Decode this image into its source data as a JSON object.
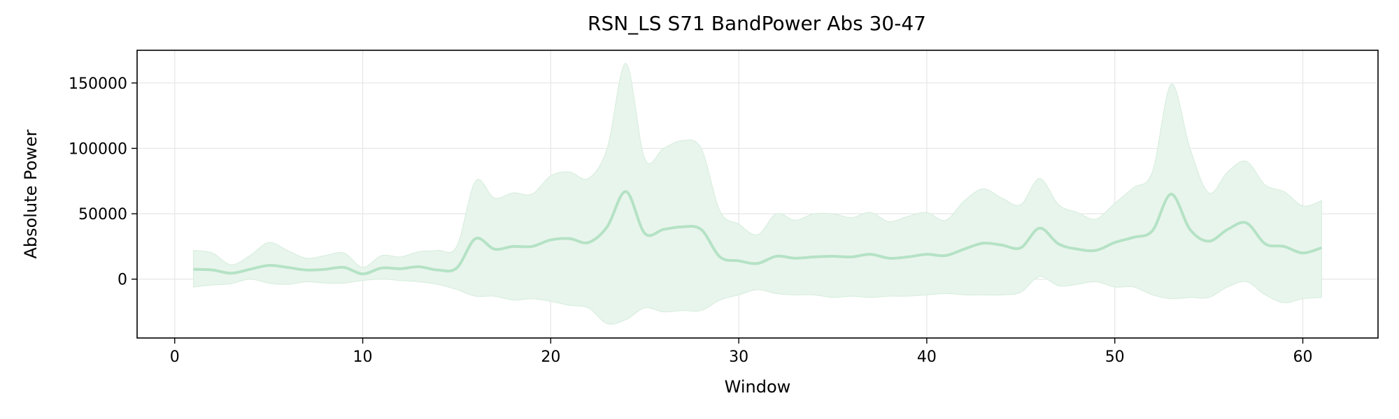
{
  "chart_data": {
    "type": "line",
    "title": "RSN_LS S71 BandPower Abs 30-47",
    "xlabel": "Window",
    "ylabel": "Absolute Power",
    "xlim": [
      -2,
      64
    ],
    "ylim": [
      -45000,
      175000
    ],
    "xticks": [
      0,
      10,
      20,
      30,
      40,
      50,
      60
    ],
    "yticks": [
      0,
      50000,
      100000,
      150000
    ],
    "grid": true,
    "colors": {
      "line": "#b5e2c5",
      "band": "#e8f5ec",
      "band_edge": "#d5ecdc",
      "grid": "#e6e6e6"
    },
    "series": [
      {
        "x": [
          1,
          2,
          3,
          4,
          5,
          6,
          7,
          8,
          9,
          10,
          11,
          12,
          13,
          14,
          15,
          16,
          17,
          18,
          19,
          20,
          21,
          22,
          23,
          24,
          25,
          26,
          27,
          28,
          29,
          30,
          31,
          32,
          33,
          34,
          35,
          36,
          37,
          38,
          39,
          40,
          41,
          42,
          43,
          44,
          45,
          46,
          47,
          48,
          49,
          50,
          51,
          52,
          53,
          54,
          55,
          56,
          57,
          58,
          59,
          60,
          61
        ],
        "mean": [
          7500,
          7000,
          4500,
          7500,
          10500,
          9000,
          7000,
          7500,
          9000,
          4000,
          8500,
          8000,
          9500,
          7000,
          8500,
          31000,
          23000,
          25000,
          25000,
          30000,
          31000,
          28000,
          40000,
          67000,
          35000,
          38000,
          40000,
          38000,
          17000,
          14000,
          12000,
          17500,
          16000,
          17000,
          17500,
          17000,
          19000,
          16000,
          17000,
          19000,
          18000,
          23000,
          27500,
          26000,
          24000,
          39000,
          27000,
          23000,
          22000,
          28000,
          32000,
          37000,
          65000,
          38000,
          29000,
          38000,
          43000,
          27000,
          25000,
          20000,
          24000
        ],
        "upper": [
          22000,
          20000,
          11000,
          18000,
          28000,
          22000,
          16000,
          18000,
          20000,
          9000,
          18000,
          17000,
          21000,
          22000,
          25000,
          75000,
          62000,
          66000,
          65000,
          79000,
          82000,
          77000,
          100000,
          165000,
          92000,
          100000,
          106000,
          100000,
          52000,
          42000,
          34000,
          50000,
          45000,
          50000,
          50000,
          47000,
          51000,
          44000,
          48000,
          51000,
          45000,
          60000,
          69000,
          62000,
          57000,
          77000,
          57000,
          51000,
          46000,
          58000,
          70000,
          82000,
          149000,
          100000,
          66000,
          82000,
          90000,
          72000,
          67000,
          56000,
          60000
        ],
        "lower": [
          -6000,
          -4500,
          -3500,
          0,
          -3000,
          -4000,
          -2000,
          -3000,
          -3000,
          -1000,
          0,
          -1000,
          -2000,
          -4000,
          -8000,
          -13000,
          -13000,
          -16000,
          -15000,
          -17000,
          -20000,
          -22000,
          -34000,
          -31000,
          -22000,
          -25000,
          -24000,
          -24000,
          -16000,
          -12000,
          -8000,
          -11000,
          -12000,
          -12000,
          -14000,
          -13000,
          -14000,
          -13000,
          -13000,
          -12000,
          -11000,
          -12000,
          -12000,
          -12000,
          -10000,
          2000,
          -5000,
          -4000,
          -2000,
          -6000,
          -6000,
          -12000,
          -15000,
          -14000,
          -14000,
          -6000,
          -2000,
          -12000,
          -18000,
          -15000,
          -14000
        ]
      }
    ]
  }
}
